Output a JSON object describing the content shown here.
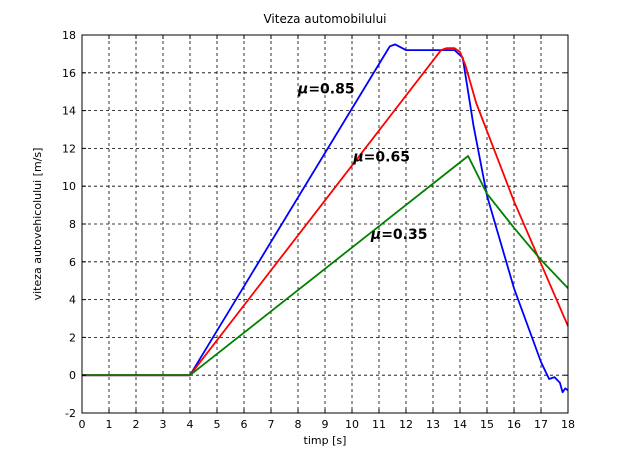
{
  "chart_data": {
    "type": "line",
    "title": "Viteza automobilului",
    "xlabel": "timp [s]",
    "ylabel": "viteza autovehicolului [m/s]",
    "xlim": [
      0,
      18
    ],
    "ylim": [
      -2,
      18
    ],
    "xticks": [
      0,
      1,
      2,
      3,
      4,
      5,
      6,
      7,
      8,
      9,
      10,
      11,
      12,
      13,
      14,
      15,
      16,
      17,
      18
    ],
    "yticks": [
      -2,
      0,
      2,
      4,
      6,
      8,
      10,
      12,
      14,
      16,
      18
    ],
    "grid": true,
    "gridStyle": "dashed",
    "series": [
      {
        "color": "#0000ff",
        "points": [
          [
            0,
            0
          ],
          [
            4,
            0
          ],
          [
            11.4,
            17.4
          ],
          [
            11.6,
            17.5
          ],
          [
            12,
            17.2
          ],
          [
            13.8,
            17.2
          ],
          [
            14.1,
            16.8
          ],
          [
            14.5,
            13.2
          ],
          [
            15,
            9.5
          ],
          [
            16,
            4.6
          ],
          [
            17,
            0.7
          ],
          [
            17.3,
            -0.2
          ],
          [
            17.5,
            -0.1
          ],
          [
            17.7,
            -0.4
          ],
          [
            17.8,
            -0.9
          ],
          [
            17.9,
            -0.7
          ],
          [
            18,
            -0.8
          ]
        ]
      },
      {
        "color": "#ff0000",
        "points": [
          [
            0,
            0
          ],
          [
            4,
            0
          ],
          [
            13.3,
            17.2
          ],
          [
            13.5,
            17.3
          ],
          [
            13.8,
            17.3
          ],
          [
            14,
            17.1
          ],
          [
            14.2,
            16.4
          ],
          [
            14.6,
            14.4
          ],
          [
            16,
            9.2
          ],
          [
            17,
            5.9
          ],
          [
            18,
            2.6
          ]
        ]
      },
      {
        "color": "#008000",
        "points": [
          [
            0,
            0
          ],
          [
            4,
            0
          ],
          [
            14.3,
            11.6
          ],
          [
            15,
            9.6
          ],
          [
            16,
            7.8
          ],
          [
            17,
            6.1
          ],
          [
            18,
            4.6
          ]
        ]
      }
    ],
    "annotations": [
      {
        "prefix": "μ",
        "text": "=0.85",
        "x": 8.0,
        "y": 14.9
      },
      {
        "prefix": "μ",
        "text": "=0.65",
        "x": 10.05,
        "y": 11.3
      },
      {
        "prefix": "μ",
        "text": "=0.35",
        "x": 10.7,
        "y": 7.2
      }
    ]
  }
}
